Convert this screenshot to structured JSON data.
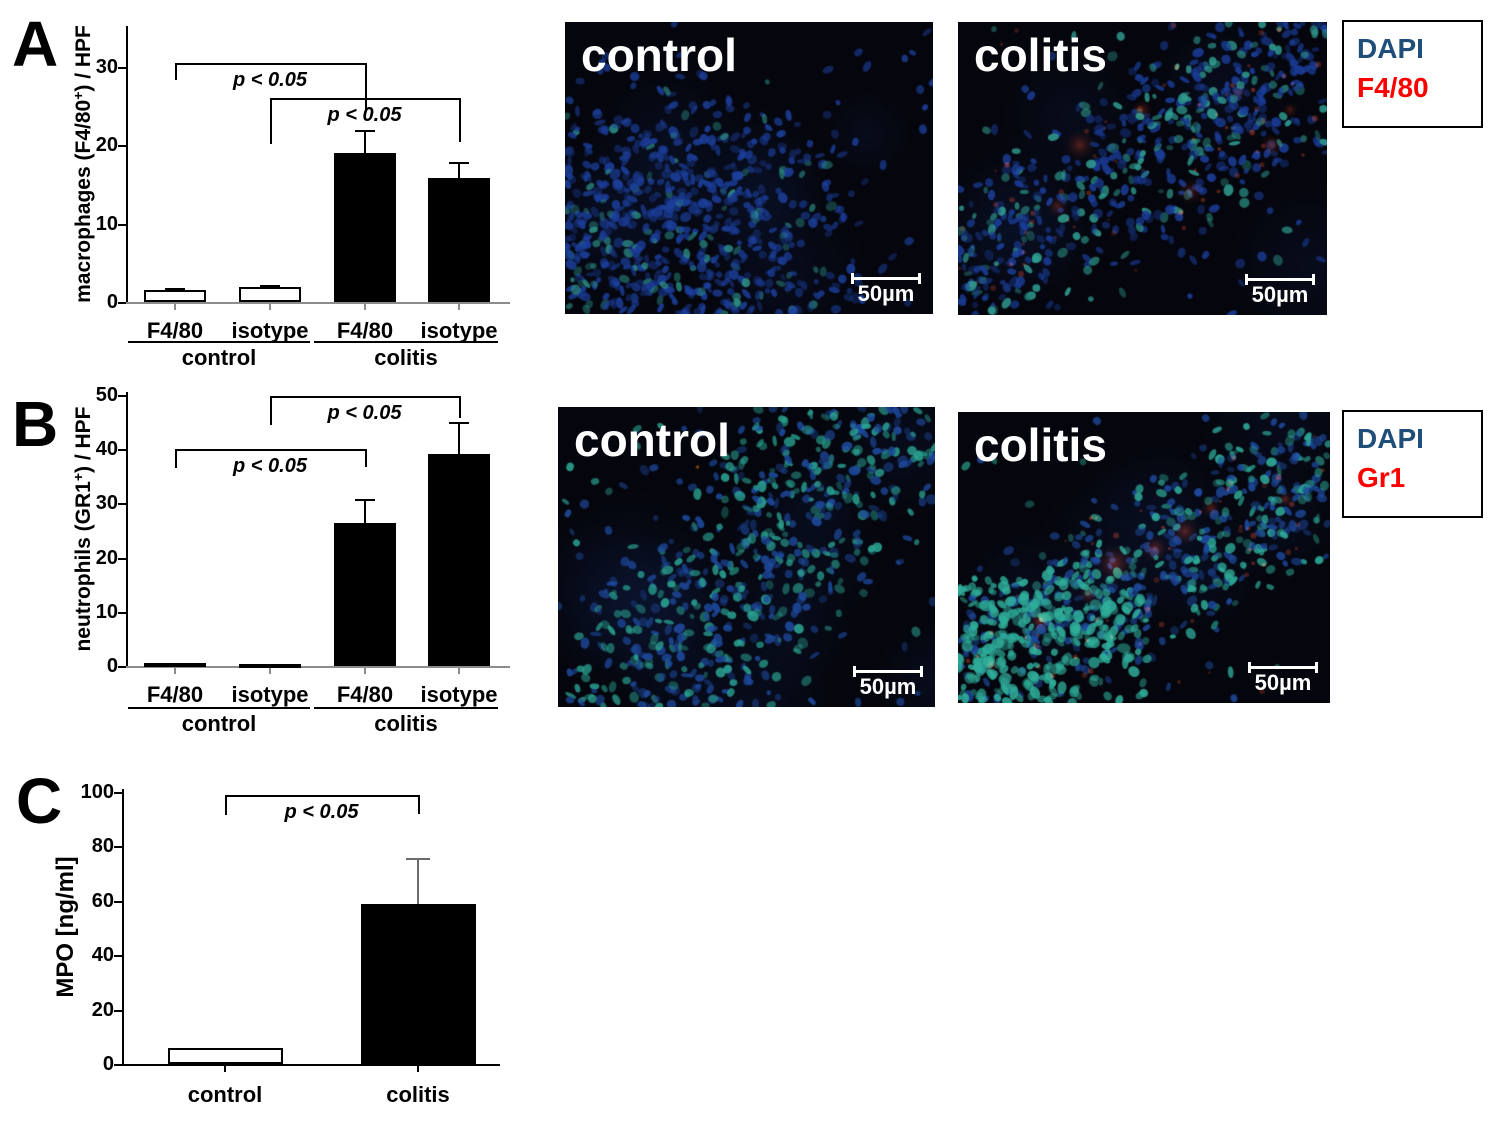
{
  "panels": [
    {
      "label": "A",
      "images": [
        {
          "label": "control",
          "scalebar": "50µm"
        },
        {
          "label": "colitis",
          "scalebar": "50µm"
        }
      ],
      "legend": [
        {
          "text": "DAPI",
          "color": "#1F4E79"
        },
        {
          "text": "F4/80",
          "color": "#FF0000"
        }
      ]
    },
    {
      "label": "B",
      "images": [
        {
          "label": "control",
          "scalebar": "50µm"
        },
        {
          "label": "colitis",
          "scalebar": "50µm"
        }
      ],
      "legend": [
        {
          "text": "DAPI",
          "color": "#1F4E79"
        },
        {
          "text": "Gr1",
          "color": "#FF0000"
        }
      ]
    },
    {
      "label": "C",
      "images": [],
      "legend": []
    }
  ],
  "chart_data": [
    {
      "id": "A",
      "type": "bar",
      "ylabel": {
        "pre": "macrophages (F4/80",
        "sup": "+",
        "post": ") / HPF"
      },
      "ylim": [
        0,
        35
      ],
      "yticks": [
        0,
        10,
        20,
        30
      ],
      "categories": [
        "F4/80",
        "isotype",
        "F4/80",
        "isotype"
      ],
      "groups": [
        {
          "label": "control"
        },
        {
          "label": "colitis"
        }
      ],
      "values": [
        1.5,
        1.9,
        19,
        15.8
      ],
      "errors": [
        0.2,
        0.15,
        2.8,
        1.9
      ],
      "bar_fills": [
        "#ffffff",
        "#ffffff",
        "#000000",
        "#000000"
      ],
      "significance": [
        {
          "label": "p < 0.05",
          "from": 0,
          "to": 2
        },
        {
          "label": "p < 0.05",
          "from": 1,
          "to": 3
        }
      ]
    },
    {
      "id": "B",
      "type": "bar",
      "ylabel": {
        "pre": "neutrophils (GR1",
        "sup": "+",
        "post": ") / HPF"
      },
      "ylim": [
        0,
        50
      ],
      "yticks": [
        0,
        10,
        20,
        30,
        40,
        50
      ],
      "categories": [
        "F4/80",
        "isotype",
        "F4/80",
        "isotype"
      ],
      "groups": [
        {
          "label": "control"
        },
        {
          "label": "colitis"
        }
      ],
      "values": [
        0.6,
        0.3,
        26.3,
        39.2
      ],
      "errors": [
        0,
        0,
        4.3,
        5.6
      ],
      "bar_fills": [
        "#ffffff",
        "#000000",
        "#000000",
        "#000000"
      ],
      "significance": [
        {
          "label": "p < 0.05",
          "from": 1,
          "to": 3
        },
        {
          "label": "p < 0.05",
          "from": 0,
          "to": 2
        }
      ]
    },
    {
      "id": "C",
      "type": "bar",
      "ylabel": {
        "pre": "MPO [ng/ml]",
        "sup": "",
        "post": ""
      },
      "ylim": [
        0,
        100
      ],
      "yticks": [
        0,
        20,
        40,
        60,
        80,
        100
      ],
      "categories": [
        "control",
        "colitis"
      ],
      "groups": [],
      "values": [
        5.8,
        59
      ],
      "errors": [
        0,
        16.5
      ],
      "bar_fills": [
        "#ffffff",
        "#000000"
      ],
      "significance": [
        {
          "label": "p < 0.05",
          "from": 0,
          "to": 1
        }
      ]
    }
  ]
}
